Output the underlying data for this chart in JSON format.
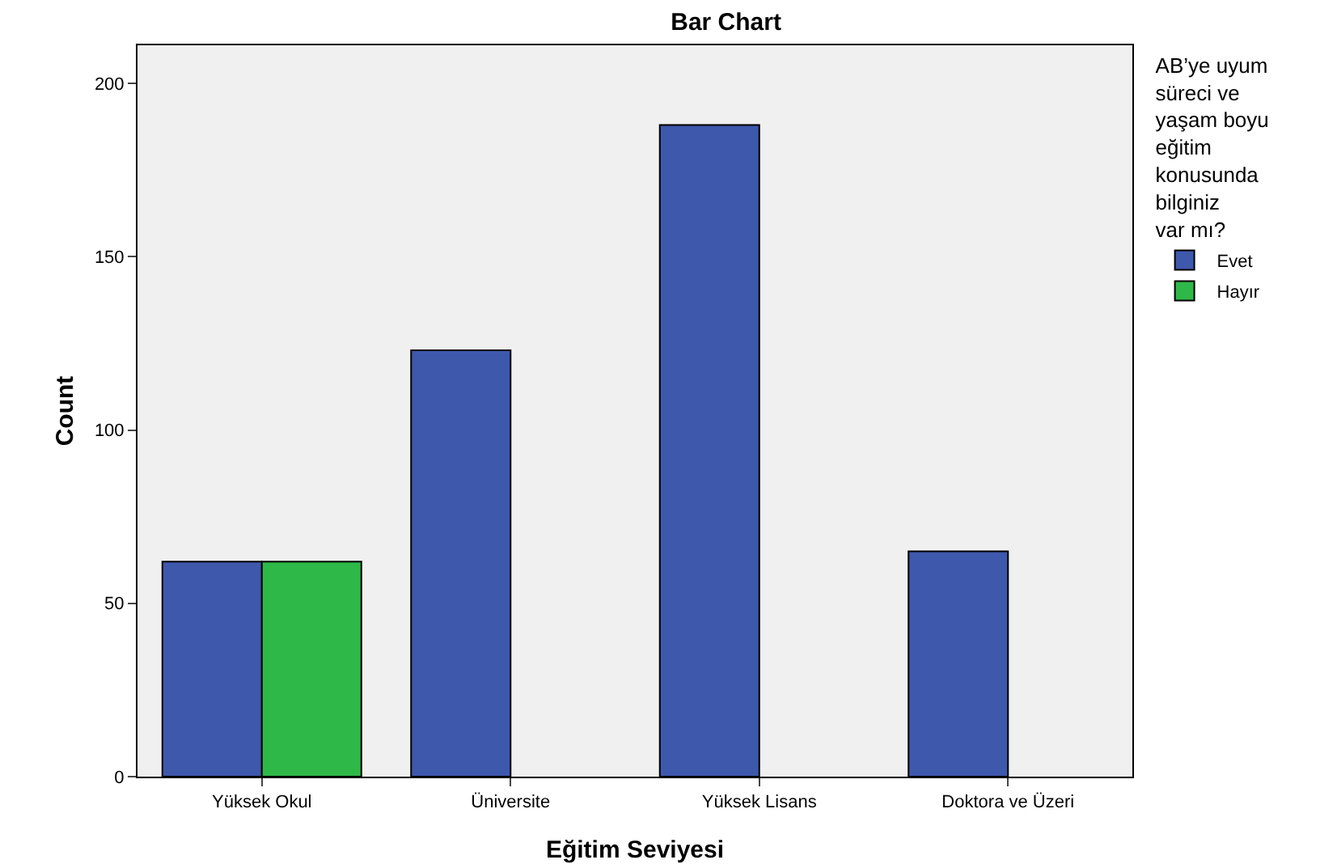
{
  "chart_data": {
    "type": "bar",
    "title": "Bar Chart",
    "xlabel": "Eğitim Seviyesi",
    "ylabel": "Count",
    "legend_title": "AB’ye uyum süreci ve yaşam boyu eğitim konusunda bilginiz var mı?",
    "categories": [
      "Yüksek Okul",
      "Üniversite",
      "Yüksek Lisans",
      "Doktora ve Üzeri"
    ],
    "series": [
      {
        "name": "Evet",
        "color": "#3e58ac",
        "values": [
          62,
          123,
          188,
          65
        ]
      },
      {
        "name": "Hayır",
        "color": "#2eb848",
        "values": [
          62,
          null,
          null,
          null
        ]
      }
    ],
    "ylim": [
      0,
      211
    ],
    "yticks": [
      0,
      50,
      100,
      150,
      200
    ],
    "grid": false,
    "legend": "top right"
  }
}
